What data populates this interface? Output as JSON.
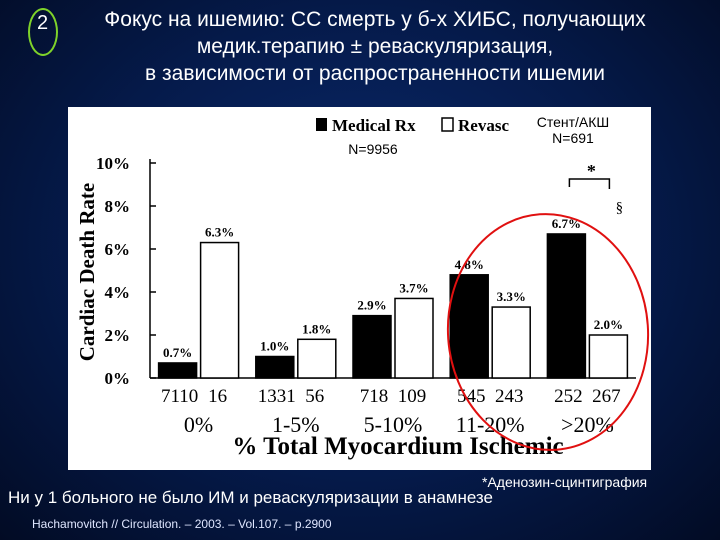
{
  "slide": {
    "number": "2",
    "title_lines": [
      "Фокус на ишемию: СС смерть у б-х ХИБС, получающих",
      "медик.терапию ± реваскуляризация,",
      "в зависимости от распространенности ишемии"
    ],
    "footnote": "*Аденозин-сцинтиграфия",
    "note": "Ни у 1 больного не было ИМ и реваскуляризации в анамнезе",
    "citation": "Hachamovitch // Circulation. – 2003. – Vol.107. – p.2900"
  },
  "chart_data": {
    "type": "bar",
    "ylabel": "Cardiac Death Rate",
    "xlabel": "% Total Myocardium Ischemic",
    "ylim": [
      0,
      10
    ],
    "yticks": [
      "0%",
      "2%",
      "4%",
      "6%",
      "8%",
      "10%"
    ],
    "categories": [
      "0%",
      "1-5%",
      "5-10%",
      "11-20%",
      ">20%"
    ],
    "series": [
      {
        "name": "Medical Rx",
        "color": "#000000",
        "values": [
          0.7,
          1.0,
          2.9,
          4.8,
          6.7
        ],
        "labels": [
          "0.7%",
          "1.0%",
          "2.9%",
          "4.8%",
          "6.7%"
        ],
        "n": [
          "7110",
          "1331",
          "718",
          "545",
          "252"
        ]
      },
      {
        "name": "Revasc",
        "color": "#ffffff",
        "values": [
          6.3,
          1.8,
          3.7,
          3.3,
          2.0
        ],
        "labels": [
          "6.3%",
          "1.8%",
          "3.7%",
          "3.3%",
          "2.0%"
        ],
        "n": [
          "16",
          "56",
          "109",
          "243",
          "267"
        ]
      }
    ],
    "annotations": {
      "n_total": "N=9956",
      "stent_label": "Стент/АКШ",
      "stent_n": "N=691",
      "star": "*",
      "section": "§"
    },
    "highlight_color": "#e01010"
  }
}
